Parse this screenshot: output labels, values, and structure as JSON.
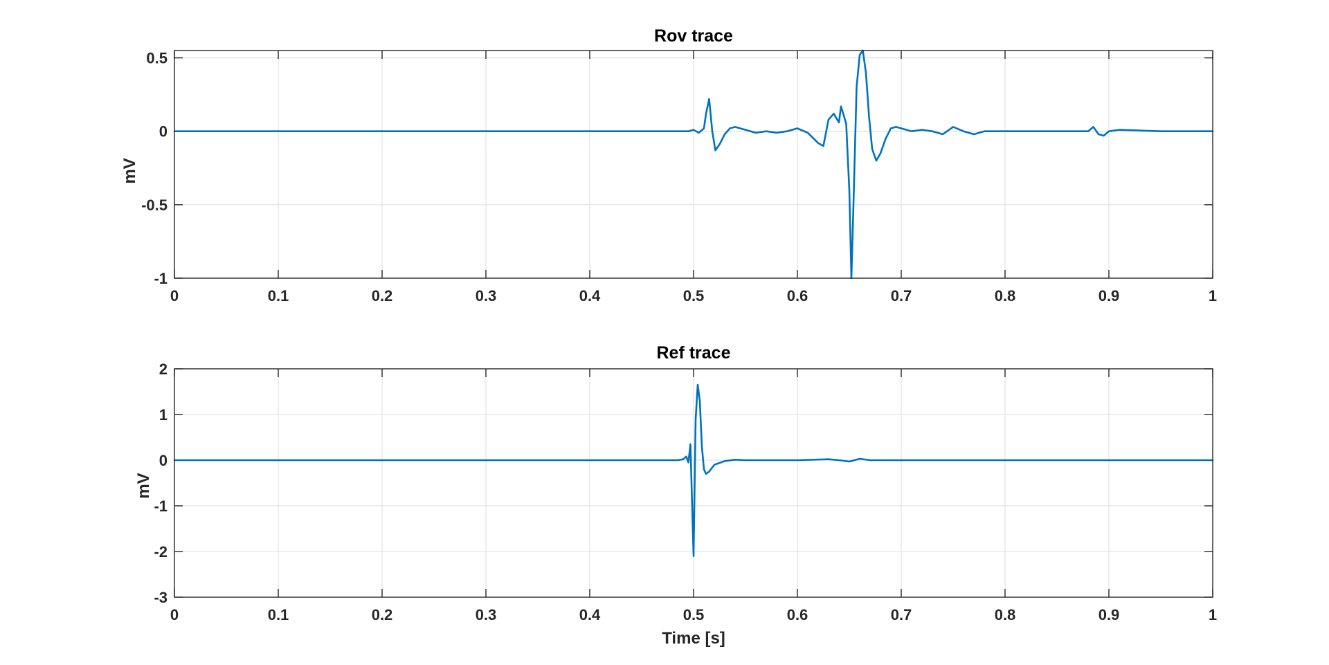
{
  "chart_data": [
    {
      "type": "line",
      "title": "Rov trace",
      "xlabel": "",
      "ylabel": "mV",
      "xlim": [
        0,
        1
      ],
      "ylim": [
        -1,
        0.55
      ],
      "xticks": [
        "0",
        "0.1",
        "0.2",
        "0.3",
        "0.4",
        "0.5",
        "0.6",
        "0.7",
        "0.8",
        "0.9",
        "1"
      ],
      "yticks": [
        "-1",
        "-0.5",
        "0",
        "0.5"
      ],
      "grid": true,
      "color": "#0072BD",
      "x": [
        0,
        0.495,
        0.5,
        0.505,
        0.51,
        0.512,
        0.515,
        0.518,
        0.521,
        0.525,
        0.53,
        0.535,
        0.54,
        0.55,
        0.56,
        0.57,
        0.58,
        0.59,
        0.6,
        0.61,
        0.62,
        0.625,
        0.63,
        0.635,
        0.64,
        0.642,
        0.645,
        0.647,
        0.65,
        0.652,
        0.654,
        0.657,
        0.66,
        0.663,
        0.666,
        0.669,
        0.672,
        0.676,
        0.68,
        0.685,
        0.69,
        0.695,
        0.7,
        0.71,
        0.72,
        0.73,
        0.74,
        0.75,
        0.76,
        0.77,
        0.78,
        0.79,
        0.8,
        0.85,
        0.88,
        0.885,
        0.89,
        0.895,
        0.9,
        0.91,
        0.95,
        1.0
      ],
      "y": [
        0,
        0,
        0.01,
        -0.01,
        0.02,
        0.12,
        0.22,
        0.0,
        -0.13,
        -0.09,
        -0.02,
        0.02,
        0.03,
        0.01,
        -0.01,
        0.0,
        -0.01,
        0.0,
        0.02,
        -0.01,
        -0.08,
        -0.1,
        0.08,
        0.12,
        0.06,
        0.17,
        0.1,
        0.05,
        -0.4,
        -1.0,
        -0.5,
        0.3,
        0.52,
        0.55,
        0.4,
        0.1,
        -0.12,
        -0.2,
        -0.15,
        -0.05,
        0.02,
        0.03,
        0.02,
        0.0,
        0.01,
        0.0,
        -0.02,
        0.03,
        0.0,
        -0.02,
        0.0,
        0.0,
        0.0,
        0.0,
        0.0,
        0.03,
        -0.02,
        -0.03,
        0.0,
        0.01,
        0.0,
        0.0
      ]
    },
    {
      "type": "line",
      "title": "Ref trace",
      "xlabel": "Time [s]",
      "ylabel": "mV",
      "xlim": [
        0,
        1
      ],
      "ylim": [
        -3,
        2
      ],
      "xticks": [
        "0",
        "0.1",
        "0.2",
        "0.3",
        "0.4",
        "0.5",
        "0.6",
        "0.7",
        "0.8",
        "0.9",
        "1"
      ],
      "yticks": [
        "-3",
        "-2",
        "-1",
        "0",
        "1",
        "2"
      ],
      "grid": true,
      "color": "#0072BD",
      "x": [
        0,
        0.485,
        0.49,
        0.493,
        0.495,
        0.497,
        0.498,
        0.5,
        0.502,
        0.504,
        0.506,
        0.508,
        0.51,
        0.512,
        0.515,
        0.52,
        0.53,
        0.54,
        0.55,
        0.6,
        0.63,
        0.64,
        0.65,
        0.66,
        0.67,
        0.68,
        1.0
      ],
      "y": [
        0,
        0,
        0.02,
        0.08,
        -0.05,
        0.35,
        -0.5,
        -2.1,
        0.9,
        1.65,
        1.3,
        0.3,
        -0.2,
        -0.3,
        -0.25,
        -0.1,
        -0.02,
        0.01,
        0.0,
        0.0,
        0.02,
        0.0,
        -0.03,
        0.03,
        0.0,
        0.0,
        0.0
      ]
    }
  ]
}
